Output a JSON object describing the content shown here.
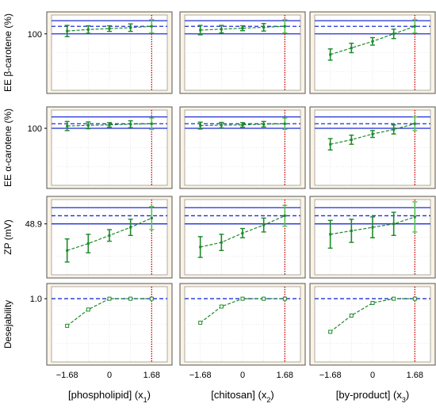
{
  "colors": {
    "panel_bg": "#fbf3e4",
    "plot_bg": "#ffffff",
    "grid": "#d8d8d8",
    "limit_line": "#1f2fd6",
    "mean_line": "#1f2fd6",
    "profile": "#1e8a2a",
    "errorbar": "#1e8a2a",
    "highlight_bar": "#52c24a",
    "cursor_line": "#cc0000"
  },
  "chart_data": {
    "type": "profile-grid",
    "x": [
      -1.68,
      -0.84,
      0,
      0.84,
      1.68
    ],
    "xticks": [
      "−1.68",
      "0",
      "1.68"
    ],
    "columns": [
      {
        "label_main": "[phospholipid] (x",
        "label_sub": "1",
        "label_end": ")"
      },
      {
        "label_main": "[chitosan] (x",
        "label_sub": "2",
        "label_end": ")"
      },
      {
        "label_main": "[by-product] (x",
        "label_sub": "3",
        "label_end": ")"
      }
    ],
    "rows": [
      {
        "ylabel": "EE β-carotene (%)",
        "ytick": "100",
        "ylim": [
          70,
          110
        ],
        "ytick_value": 100,
        "limits": [
          100,
          107
        ],
        "mean": 104,
        "errorbars": true,
        "panels": [
          {
            "y": [
              101.5,
              102.3,
              102.8,
              103.3,
              104.0
            ],
            "err": [
              3.0,
              2.0,
              1.5,
              2.0,
              3.5
            ]
          },
          {
            "y": [
              102.0,
              102.5,
              103.0,
              103.5,
              104.0
            ],
            "err": [
              2.5,
              2.0,
              1.3,
              2.0,
              3.5
            ]
          },
          {
            "y": [
              89.0,
              92.5,
              96.0,
              100.0,
              104.0
            ],
            "err": [
              3.0,
              2.5,
              2.0,
              2.5,
              3.5
            ]
          }
        ]
      },
      {
        "ylabel": "EE α-carotene (%)",
        "ytick": "100",
        "ylim": [
          75,
          108
        ],
        "ytick_value": 100,
        "limits": [
          100,
          105
        ],
        "mean": 102,
        "errorbars": true,
        "panels": [
          {
            "y": [
              101.0,
              101.3,
              101.5,
              101.8,
              102.0
            ],
            "err": [
              2.0,
              1.5,
              1.0,
              1.5,
              2.5
            ]
          },
          {
            "y": [
              101.2,
              101.4,
              101.5,
              101.8,
              102.0
            ],
            "err": [
              1.5,
              1.2,
              1.0,
              1.2,
              2.5
            ]
          },
          {
            "y": [
              93.0,
              95.0,
              97.5,
              99.5,
              102.0
            ],
            "err": [
              2.5,
              2.0,
              1.5,
              2.0,
              3.0
            ]
          }
        ]
      },
      {
        "ylabel": "ZP (mV)",
        "ytick": "48.9",
        "ylim": [
          44.5,
          51.0
        ],
        "ytick_value": 48.9,
        "limits": [
          48.9,
          50.3
        ],
        "mean": 49.6,
        "errorbars": true,
        "panels": [
          {
            "y": [
              46.6,
              47.2,
              47.9,
              48.6,
              49.4
            ],
            "err": [
              1.0,
              0.8,
              0.5,
              0.7,
              1.0
            ]
          },
          {
            "y": [
              46.9,
              47.3,
              48.1,
              48.8,
              49.6
            ],
            "err": [
              0.9,
              0.7,
              0.4,
              0.6,
              0.9
            ]
          },
          {
            "y": [
              48.0,
              48.3,
              48.6,
              48.9,
              49.5
            ],
            "err": [
              1.2,
              1.0,
              0.9,
              1.0,
              1.3
            ]
          }
        ]
      },
      {
        "ylabel": "Desejability",
        "ytick": "1.0",
        "ylim": [
          -0.05,
          1.2
        ],
        "ytick_value": 1.0,
        "limits": [],
        "mean": 1.0,
        "errorbars": false,
        "panels": [
          {
            "y": [
              0.55,
              0.82,
              1.0,
              1.0,
              1.0
            ],
            "err": []
          },
          {
            "y": [
              0.6,
              0.87,
              1.0,
              1.0,
              1.0
            ],
            "err": []
          },
          {
            "y": [
              0.45,
              0.72,
              0.93,
              1.0,
              1.0
            ],
            "err": []
          }
        ]
      }
    ],
    "cursor_x": 1.68,
    "grid": true,
    "legend": "none"
  }
}
